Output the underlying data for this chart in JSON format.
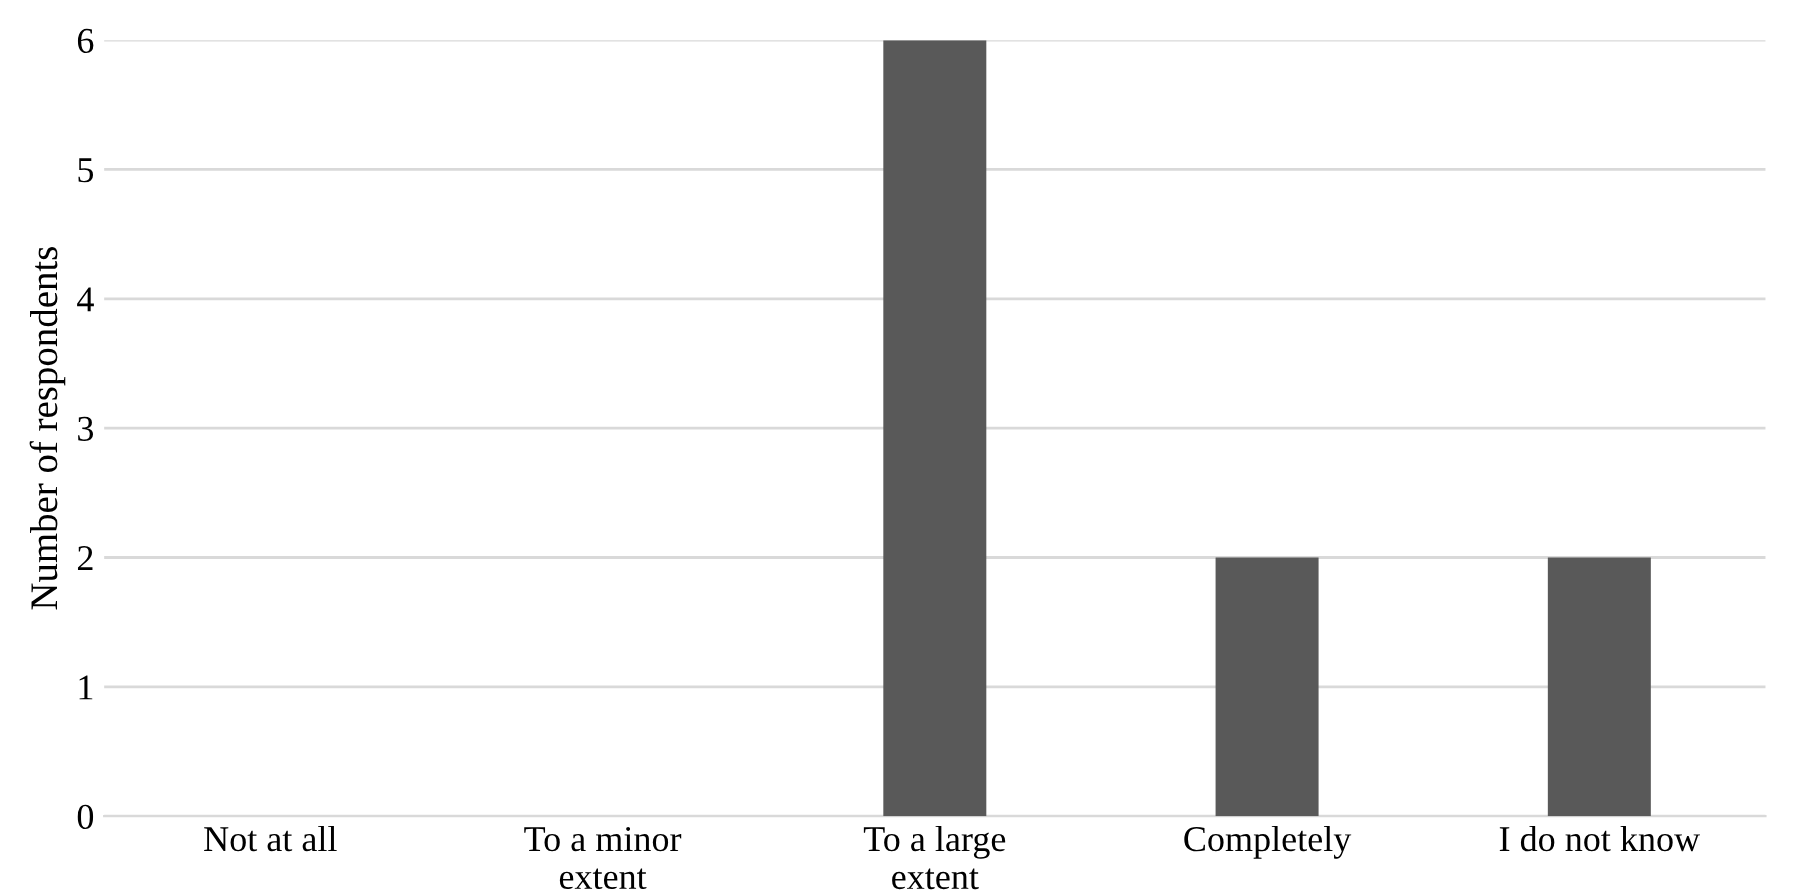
{
  "chart_data": {
    "type": "bar",
    "ylabel": "Number of respondents",
    "categories": [
      "Not at all",
      "To a minor\nextent",
      "To a large\nextent",
      "Completely",
      "I do not know"
    ],
    "values": [
      0,
      0,
      6,
      2,
      2
    ],
    "color": "#595959",
    "ylim": [
      0,
      6
    ],
    "yticks": [
      0,
      1,
      2,
      3,
      4,
      5,
      6
    ],
    "grid": "y",
    "legend": false
  }
}
